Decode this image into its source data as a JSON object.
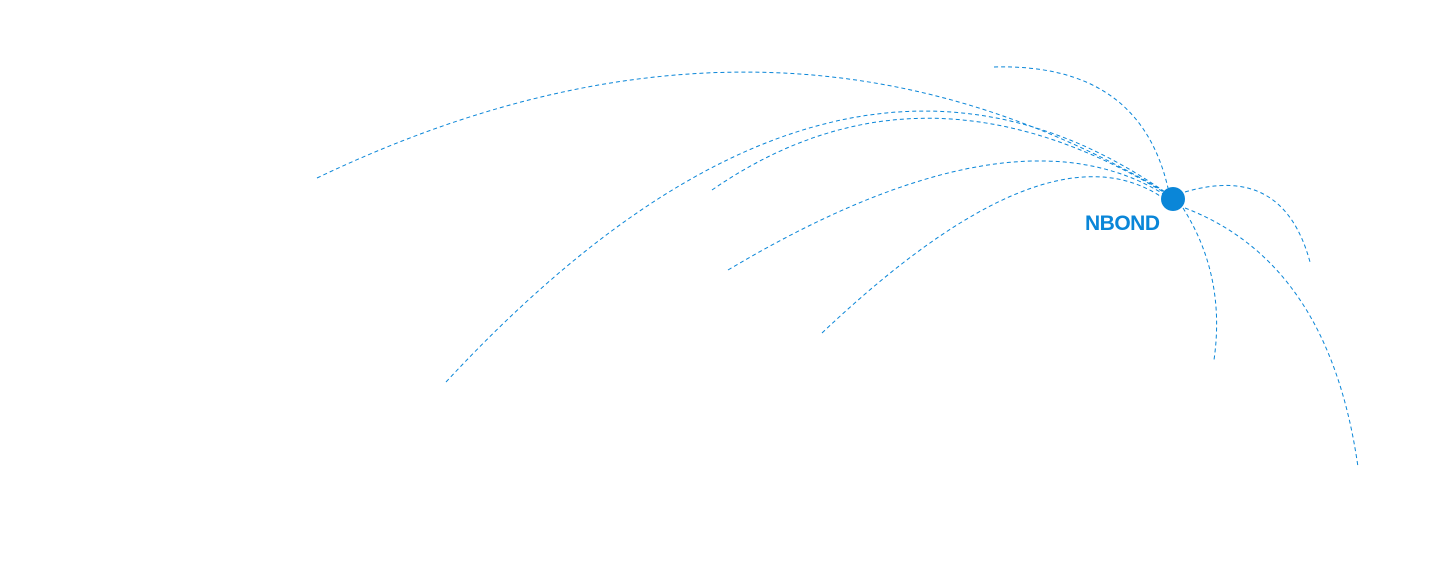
{
  "accent_color": "#0a86d8",
  "hub": {
    "label": "NBOND",
    "icon": "hub-dot"
  },
  "connections": 9
}
